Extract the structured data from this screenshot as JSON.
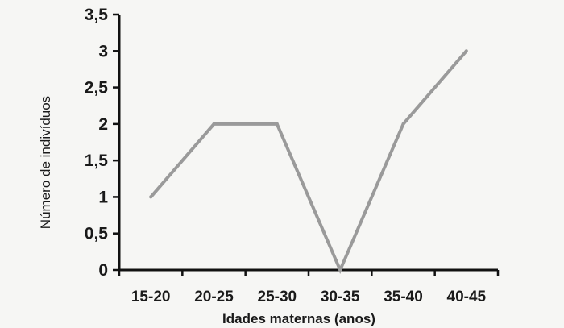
{
  "chart_data": {
    "type": "line",
    "title": "",
    "xlabel": "Idades maternas (anos)",
    "ylabel": "Número de indivíduos",
    "categories": [
      "15-20",
      "20-25",
      "25-30",
      "30-35",
      "35-40",
      "40-45"
    ],
    "series": [
      {
        "values": [
          1,
          2,
          2,
          0,
          2,
          3
        ]
      }
    ],
    "ylim": [
      0,
      3.5
    ],
    "yticks": [
      "0",
      "0,5",
      "1",
      "1,5",
      "2",
      "2,5",
      "3",
      "3,5"
    ],
    "grid": false,
    "legend": "none",
    "colors": {
      "line": "#9a9a9a",
      "axis": "#111111",
      "text": "#1a1a1a",
      "background": "#f6f6f4"
    }
  }
}
